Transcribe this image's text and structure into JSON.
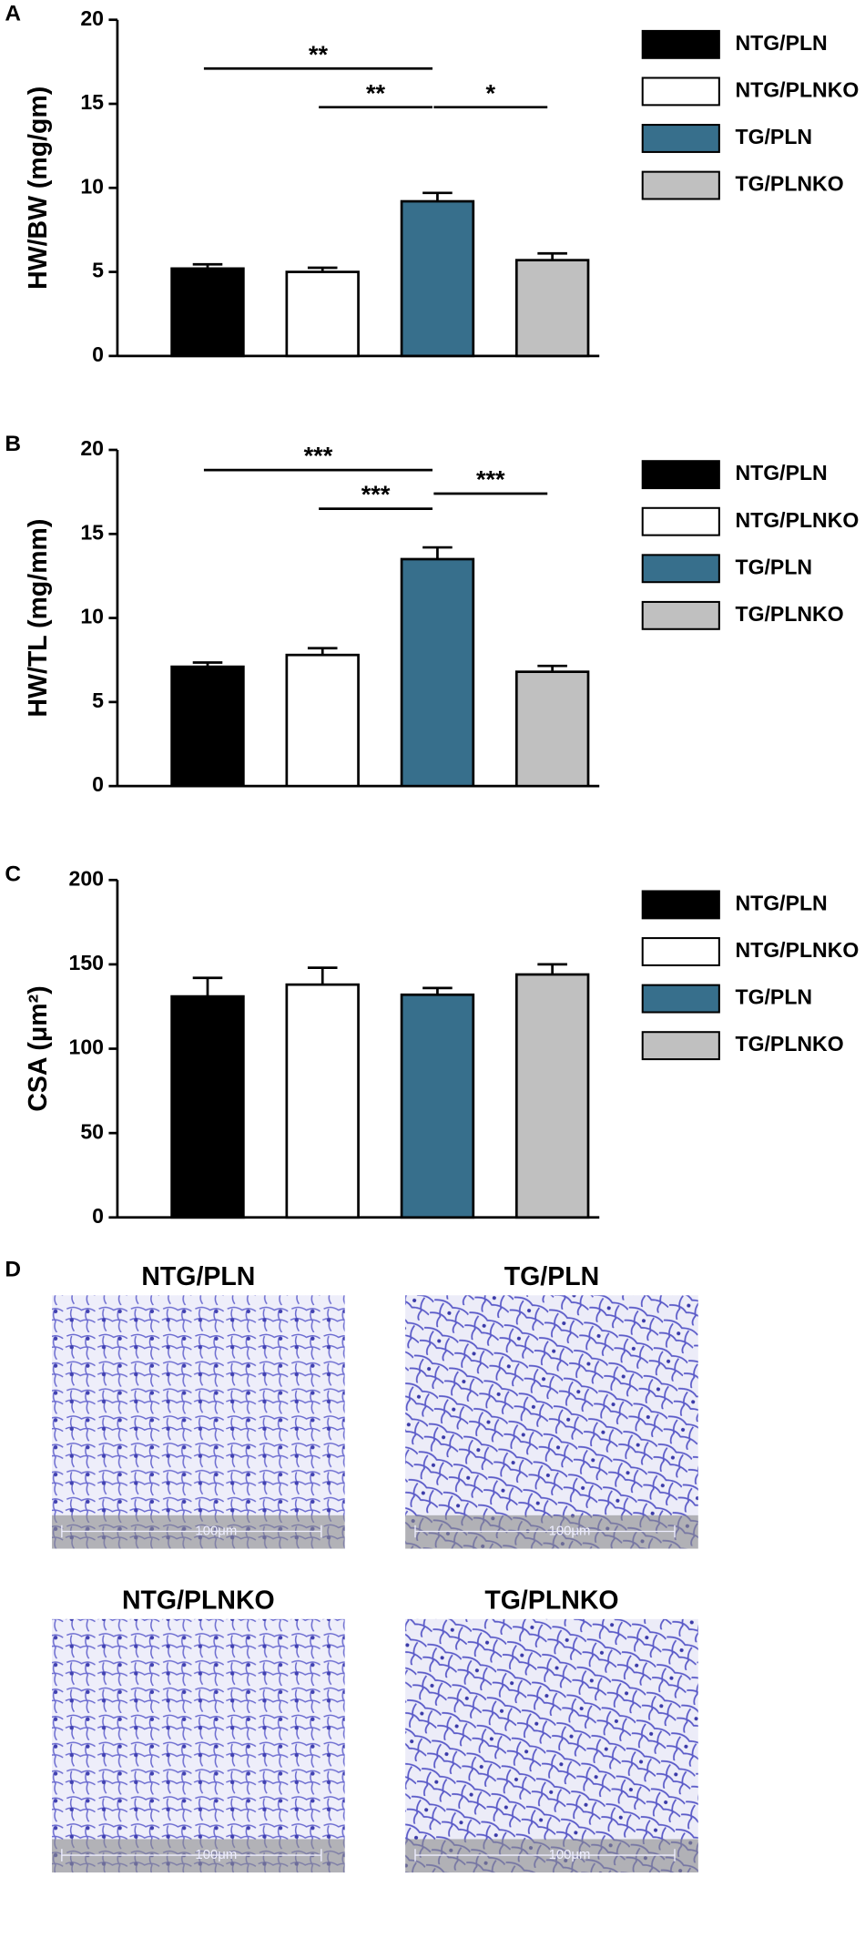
{
  "chart_data": [
    {
      "type": "bar",
      "panel": "A",
      "ylabel": "HW/BW (mg/gm)",
      "ylim": [
        0,
        20
      ],
      "yticks": [
        0,
        5,
        10,
        15,
        20
      ],
      "series": [
        {
          "name": "NTG/PLN",
          "color": "#000000",
          "values": [
            5.2
          ],
          "errors": [
            0.25
          ]
        },
        {
          "name": "NTG/PLNKO",
          "color": "#ffffff",
          "values": [
            5.0
          ],
          "errors": [
            0.25
          ]
        },
        {
          "name": "TG/PLN",
          "color": "#376f8c",
          "values": [
            9.2
          ],
          "errors": [
            0.5
          ]
        },
        {
          "name": "TG/PLNKO",
          "color": "#c0c0c0",
          "values": [
            5.7
          ],
          "errors": [
            0.4
          ]
        }
      ],
      "annotations": [
        {
          "text": "**",
          "from": 0,
          "to": 2,
          "y": 17.1
        },
        {
          "text": "**",
          "from": 1,
          "to": 2,
          "y": 14.8
        },
        {
          "text": "*",
          "from": 2,
          "to": 3,
          "y": 14.8
        }
      ]
    },
    {
      "type": "bar",
      "panel": "B",
      "ylabel": "HW/TL (mg/mm)",
      "ylim": [
        0,
        20
      ],
      "yticks": [
        0,
        5,
        10,
        15,
        20
      ],
      "series": [
        {
          "name": "NTG/PLN",
          "color": "#000000",
          "values": [
            7.1
          ],
          "errors": [
            0.25
          ]
        },
        {
          "name": "NTG/PLNKO",
          "color": "#ffffff",
          "values": [
            7.8
          ],
          "errors": [
            0.4
          ]
        },
        {
          "name": "TG/PLN",
          "color": "#376f8c",
          "values": [
            13.5
          ],
          "errors": [
            0.7
          ]
        },
        {
          "name": "TG/PLNKO",
          "color": "#c0c0c0",
          "values": [
            6.8
          ],
          "errors": [
            0.35
          ]
        }
      ],
      "annotations": [
        {
          "text": "***",
          "from": 0,
          "to": 2,
          "y": 18.8
        },
        {
          "text": "***",
          "from": 1,
          "to": 2,
          "y": 16.5
        },
        {
          "text": "***",
          "from": 2,
          "to": 3,
          "y": 17.4
        }
      ]
    },
    {
      "type": "bar",
      "panel": "C",
      "ylabel": "CSA (μm²)",
      "ylim": [
        0,
        200
      ],
      "yticks": [
        0,
        50,
        100,
        150,
        200
      ],
      "series": [
        {
          "name": "NTG/PLN",
          "color": "#000000",
          "values": [
            131
          ],
          "errors": [
            11
          ]
        },
        {
          "name": "NTG/PLNKO",
          "color": "#ffffff",
          "values": [
            138
          ],
          "errors": [
            10
          ]
        },
        {
          "name": "TG/PLN",
          "color": "#376f8c",
          "values": [
            132
          ],
          "errors": [
            4
          ]
        },
        {
          "name": "TG/PLNKO",
          "color": "#c0c0c0",
          "values": [
            144
          ],
          "errors": [
            6
          ]
        }
      ],
      "annotations": []
    }
  ],
  "micrographs": {
    "panel": "D",
    "images": [
      {
        "title": "NTG/PLN",
        "scale_bar": "100μm"
      },
      {
        "title": "TG/PLN",
        "scale_bar": "100μm"
      },
      {
        "title": "NTG/PLNKO",
        "scale_bar": "100μm"
      },
      {
        "title": "TG/PLNKO",
        "scale_bar": "100μm"
      }
    ]
  }
}
